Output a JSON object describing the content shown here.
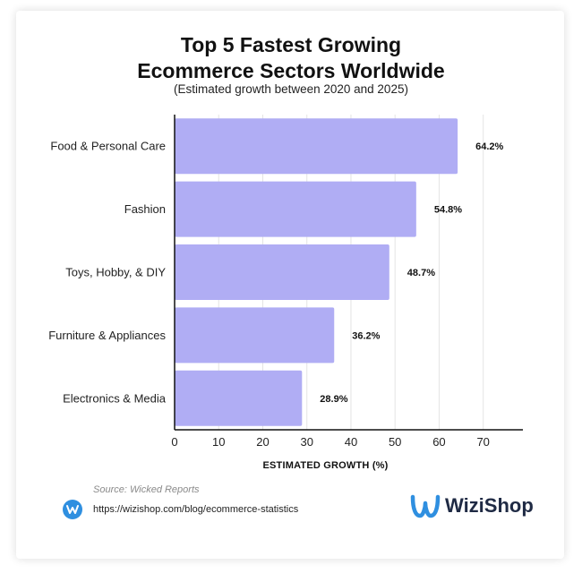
{
  "chart_data": {
    "type": "bar",
    "orientation": "horizontal",
    "title": "Top 5 Fastest Growing\nEcommerce Sectors Worldwide",
    "subtitle": "(Estimated growth between 2020 and 2025)",
    "categories": [
      "Food & Personal Care",
      "Fashion",
      "Toys, Hobby, & DIY",
      "Furniture & Appliances",
      "Electronics & Media"
    ],
    "values": [
      64.2,
      54.8,
      48.7,
      36.2,
      28.9
    ],
    "value_labels": [
      "64.2%",
      "54.8%",
      "48.7%",
      "36.2%",
      "28.9%"
    ],
    "xlabel": "ESTIMATED GROWTH (%)",
    "ylabel": "",
    "xlim": [
      0,
      79
    ],
    "xticks": [
      0,
      10,
      20,
      30,
      40,
      50,
      60,
      70
    ],
    "grid": "vertical",
    "bar_color": "#b0adf4"
  },
  "footer": {
    "source": "Source: Wicked Reports",
    "url": "https://wizishop.com/blog/ecommerce-statistics",
    "brand": "WiziShop",
    "url_icon": "wizishop-circle-icon",
    "logo_icon": "wizishop-logo-icon"
  },
  "colors": {
    "bar": "#b0adf4",
    "logo_blue": "#2f8fe0",
    "logo_text": "#1f2a44"
  }
}
